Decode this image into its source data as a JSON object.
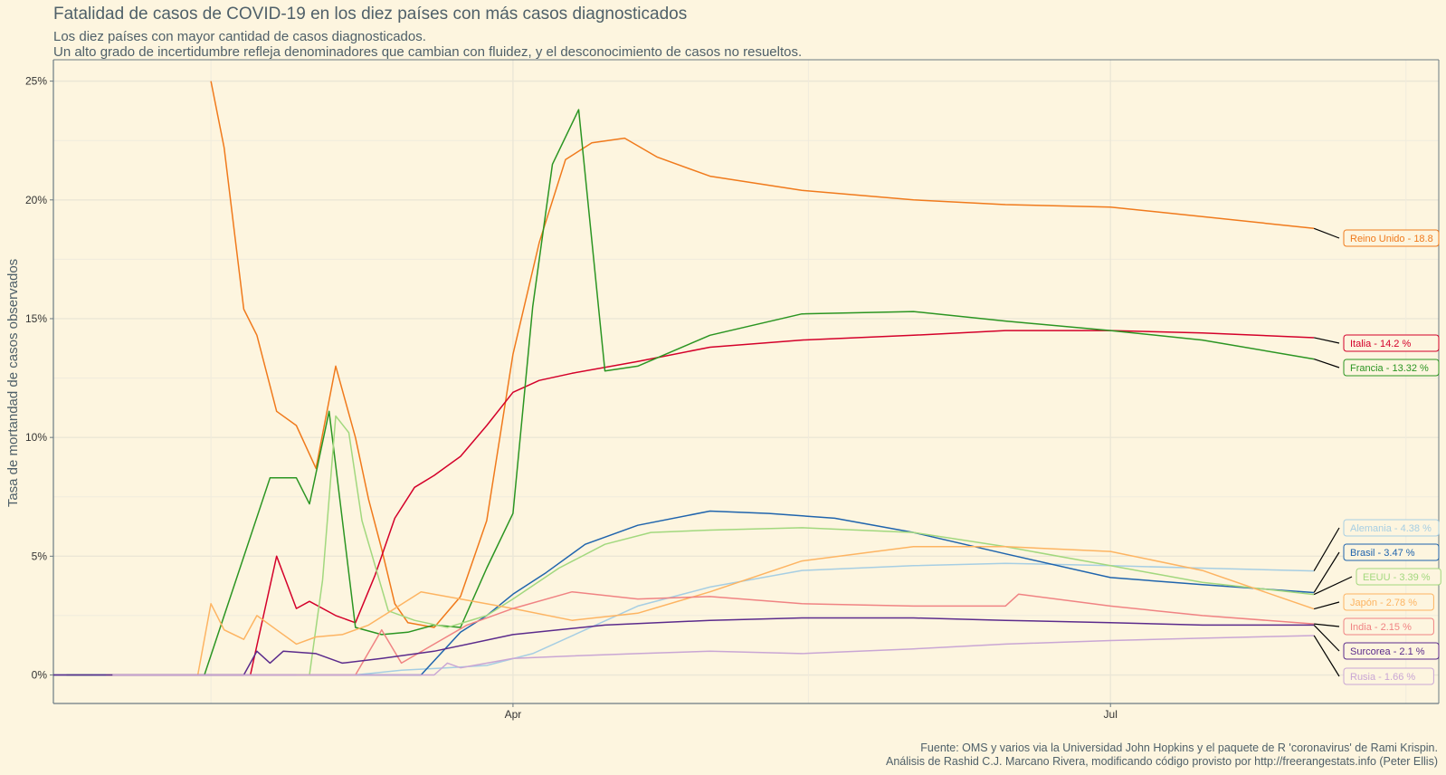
{
  "header": {
    "title": "Fatalidad de casos de COVID-19 en los diez países con más casos diagnosticados",
    "subtitle_line1": "Los diez países con mayor cantidad de casos diagnosticados.",
    "subtitle_line2": "Un alto grado de incertidumbre refleja denominadores que cambian con fluidez, y el desconocimiento de casos no resueltos."
  },
  "footer": {
    "caption_line1": "Fuente: OMS y varios via la Universidad John Hopkins y el paquete de R 'coronavirus' de Rami Krispin.",
    "caption_line2": "Análisis de Rashid C.J. Marcano Rivera, modificando código provisto por http://freerangestats.info (Peter Ellis)"
  },
  "chart_data": {
    "type": "line",
    "title": "Fatalidad de casos de COVID-19 en los diez países con más casos diagnosticados",
    "ylabel": "Tasa de mortandad de casos observados",
    "xlabel": "",
    "y_ticks": [
      "0%",
      "5%",
      "10%",
      "15%",
      "20%",
      "25%"
    ],
    "y_tick_values": [
      0,
      5,
      10,
      15,
      20,
      25
    ],
    "x_ticks": [
      "Apr",
      "Jul"
    ],
    "x_tick_values": [
      "2020-04-01",
      "2020-07-01"
    ],
    "x_range": [
      "2020-01-22",
      "2020-08-20"
    ],
    "ylim": [
      -1.2,
      25.9
    ],
    "grid": true,
    "legend": "direct-labels-right",
    "series": [
      {
        "label": "Reino Unido - 18.8",
        "color": "#f07a1c",
        "x": [
          "2020-02-15",
          "2020-02-17",
          "2020-02-20",
          "2020-02-22",
          "2020-02-25",
          "2020-02-28",
          "2020-03-02",
          "2020-03-05",
          "2020-03-08",
          "2020-03-10",
          "2020-03-12",
          "2020-03-14",
          "2020-03-16",
          "2020-03-18",
          "2020-03-20",
          "2020-03-24",
          "2020-03-28",
          "2020-04-01",
          "2020-04-05",
          "2020-04-09",
          "2020-04-13",
          "2020-04-18",
          "2020-04-23",
          "2020-05-01",
          "2020-05-15",
          "2020-06-01",
          "2020-06-15",
          "2020-07-01",
          "2020-07-15",
          "2020-08-01"
        ],
        "y": [
          25.0,
          22.2,
          15.4,
          14.3,
          11.1,
          10.5,
          8.7,
          13.0,
          10.0,
          7.4,
          5.3,
          3.0,
          2.2,
          2.1,
          2.0,
          3.3,
          6.5,
          13.5,
          18.2,
          21.7,
          22.4,
          22.6,
          21.8,
          21.0,
          20.4,
          20.0,
          19.8,
          19.7,
          19.3,
          18.8
        ]
      },
      {
        "label": "Italia - 14.2 %",
        "color": "#d4002a",
        "x": [
          "2020-02-21",
          "2020-02-25",
          "2020-02-28",
          "2020-03-01",
          "2020-03-05",
          "2020-03-08",
          "2020-03-11",
          "2020-03-14",
          "2020-03-17",
          "2020-03-20",
          "2020-03-24",
          "2020-03-28",
          "2020-04-01",
          "2020-04-05",
          "2020-04-10",
          "2020-04-20",
          "2020-05-01",
          "2020-05-15",
          "2020-06-01",
          "2020-06-15",
          "2020-07-01",
          "2020-07-15",
          "2020-08-01"
        ],
        "y": [
          0.0,
          5.0,
          2.8,
          3.1,
          2.5,
          2.2,
          4.2,
          6.6,
          7.9,
          8.4,
          9.2,
          10.5,
          11.9,
          12.4,
          12.7,
          13.2,
          13.8,
          14.1,
          14.3,
          14.5,
          14.5,
          14.4,
          14.2
        ]
      },
      {
        "label": "Francia - 13.32 %",
        "color": "#2b9522",
        "x": [
          "2020-01-24",
          "2020-02-01",
          "2020-02-14",
          "2020-02-24",
          "2020-02-28",
          "2020-03-01",
          "2020-03-04",
          "2020-03-08",
          "2020-03-12",
          "2020-03-16",
          "2020-03-20",
          "2020-03-24",
          "2020-03-28",
          "2020-04-01",
          "2020-04-04",
          "2020-04-07",
          "2020-04-11",
          "2020-04-15",
          "2020-04-20",
          "2020-05-01",
          "2020-05-15",
          "2020-06-01",
          "2020-06-15",
          "2020-07-01",
          "2020-07-15",
          "2020-08-01"
        ],
        "y": [
          0.0,
          0.0,
          0.0,
          8.3,
          8.3,
          7.2,
          11.1,
          2.0,
          1.7,
          1.8,
          2.1,
          2.0,
          4.5,
          6.8,
          15.5,
          21.5,
          23.8,
          12.8,
          13.0,
          14.3,
          15.2,
          15.3,
          14.9,
          14.5,
          14.1,
          13.3
        ]
      },
      {
        "label": "Alemania - 4.38 %",
        "color": "#a6cee3",
        "x": [
          "2020-01-28",
          "2020-02-15",
          "2020-03-08",
          "2020-03-15",
          "2020-03-22",
          "2020-03-28",
          "2020-04-04",
          "2020-04-12",
          "2020-04-20",
          "2020-05-01",
          "2020-05-15",
          "2020-06-01",
          "2020-06-15",
          "2020-07-01",
          "2020-07-15",
          "2020-08-01"
        ],
        "y": [
          0.0,
          0.0,
          0.0,
          0.2,
          0.3,
          0.4,
          0.9,
          1.9,
          2.9,
          3.7,
          4.4,
          4.6,
          4.7,
          4.6,
          4.5,
          4.38
        ]
      },
      {
        "label": "Brasil - 3.47 %",
        "color": "#1f64ad",
        "x": [
          "2020-01-22",
          "2020-02-15",
          "2020-03-18",
          "2020-03-24",
          "2020-03-28",
          "2020-04-01",
          "2020-04-06",
          "2020-04-12",
          "2020-04-20",
          "2020-05-01",
          "2020-05-10",
          "2020-05-20",
          "2020-06-01",
          "2020-06-15",
          "2020-07-01",
          "2020-07-15",
          "2020-08-01"
        ],
        "y": [
          0.0,
          0.0,
          0.0,
          1.8,
          2.5,
          3.4,
          4.3,
          5.5,
          6.3,
          6.9,
          6.8,
          6.6,
          6.0,
          5.1,
          4.1,
          3.8,
          3.47
        ]
      },
      {
        "label": "EEUU - 3.39 %",
        "color": "#a2d87e",
        "x": [
          "2020-02-28",
          "2020-03-01",
          "2020-03-03",
          "2020-03-05",
          "2020-03-07",
          "2020-03-09",
          "2020-03-13",
          "2020-03-17",
          "2020-03-22",
          "2020-03-28",
          "2020-04-01",
          "2020-04-08",
          "2020-04-15",
          "2020-04-22",
          "2020-05-01",
          "2020-05-15",
          "2020-06-01",
          "2020-06-15",
          "2020-07-01",
          "2020-07-15",
          "2020-08-01"
        ],
        "y": [
          0.0,
          0.0,
          4.0,
          10.9,
          10.2,
          6.5,
          2.7,
          2.3,
          2.0,
          2.5,
          3.2,
          4.5,
          5.5,
          6.0,
          6.1,
          6.2,
          6.0,
          5.4,
          4.6,
          3.9,
          3.39
        ]
      },
      {
        "label": "Japón - 2.78 %",
        "color": "#fdb462",
        "x": [
          "2020-02-13",
          "2020-02-15",
          "2020-02-17",
          "2020-02-20",
          "2020-02-22",
          "2020-02-25",
          "2020-02-28",
          "2020-03-02",
          "2020-03-06",
          "2020-03-10",
          "2020-03-14",
          "2020-03-18",
          "2020-03-24",
          "2020-04-01",
          "2020-04-10",
          "2020-04-20",
          "2020-05-01",
          "2020-05-15",
          "2020-06-01",
          "2020-06-15",
          "2020-07-01",
          "2020-07-15",
          "2020-08-01"
        ],
        "y": [
          0.0,
          3.0,
          1.9,
          1.5,
          2.5,
          1.9,
          1.3,
          1.6,
          1.7,
          2.1,
          2.8,
          3.5,
          3.2,
          2.8,
          2.3,
          2.6,
          3.5,
          4.8,
          5.4,
          5.4,
          5.2,
          4.4,
          2.78
        ]
      },
      {
        "label": "India - 2.15 %",
        "color": "#f08383",
        "x": [
          "2020-01-30",
          "2020-03-08",
          "2020-03-12",
          "2020-03-15",
          "2020-03-20",
          "2020-03-25",
          "2020-04-01",
          "2020-04-10",
          "2020-04-20",
          "2020-05-01",
          "2020-05-15",
          "2020-06-01",
          "2020-06-15",
          "2020-06-17",
          "2020-07-01",
          "2020-07-15",
          "2020-08-01"
        ],
        "y": [
          0.0,
          0.0,
          1.9,
          0.5,
          1.3,
          2.1,
          2.8,
          3.5,
          3.2,
          3.3,
          3.0,
          2.9,
          2.9,
          3.4,
          2.9,
          2.5,
          2.15
        ]
      },
      {
        "label": "Surcorea - 2.1 %",
        "color": "#5b2b8c",
        "x": [
          "2020-01-22",
          "2020-02-20",
          "2020-02-22",
          "2020-02-24",
          "2020-02-26",
          "2020-03-02",
          "2020-03-06",
          "2020-03-12",
          "2020-03-20",
          "2020-04-01",
          "2020-04-15",
          "2020-05-01",
          "2020-05-15",
          "2020-06-01",
          "2020-06-15",
          "2020-07-01",
          "2020-07-15",
          "2020-08-01"
        ],
        "y": [
          0.0,
          0.0,
          1.0,
          0.5,
          1.0,
          0.9,
          0.5,
          0.7,
          1.0,
          1.7,
          2.1,
          2.3,
          2.4,
          2.4,
          2.3,
          2.2,
          2.1,
          2.1
        ]
      },
      {
        "label": "Rusia - 1.66 %",
        "color": "#c9a6d4",
        "x": [
          "2020-01-31",
          "2020-03-20",
          "2020-03-22",
          "2020-03-24",
          "2020-04-01",
          "2020-04-10",
          "2020-04-20",
          "2020-05-01",
          "2020-05-15",
          "2020-06-01",
          "2020-06-15",
          "2020-07-01",
          "2020-07-15",
          "2020-08-01"
        ],
        "y": [
          0.0,
          0.0,
          0.5,
          0.3,
          0.7,
          0.8,
          0.9,
          1.0,
          0.9,
          1.1,
          1.3,
          1.45,
          1.55,
          1.66
        ]
      }
    ]
  }
}
